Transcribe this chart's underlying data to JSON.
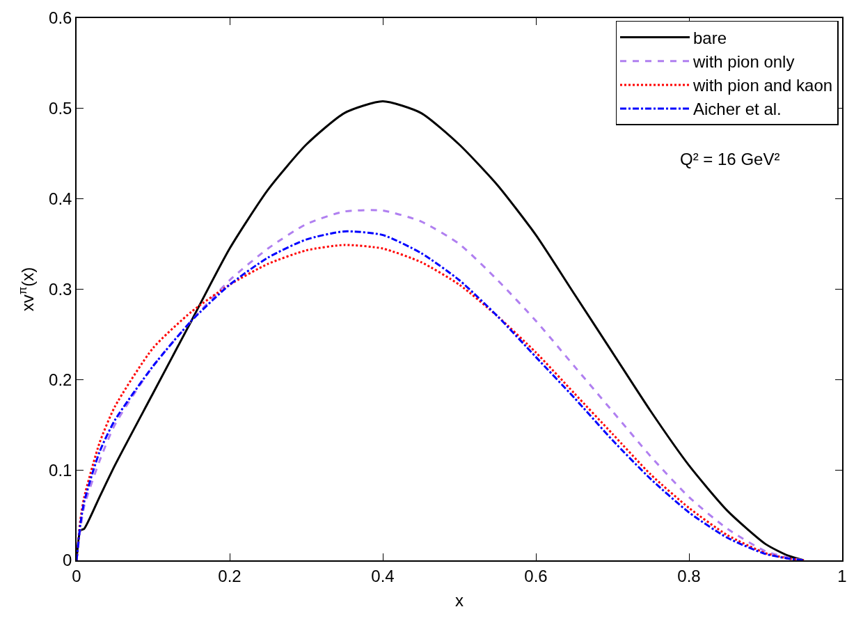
{
  "chart_data": {
    "type": "line",
    "xlabel": "x",
    "ylabel": "xv$^{π}$(x)",
    "xlim": [
      0,
      1
    ],
    "xticks": [
      0,
      0.2,
      0.4,
      0.6,
      0.8,
      1
    ],
    "ylim": [
      0,
      0.6
    ],
    "yticks": [
      0,
      0.1,
      0.2,
      0.3,
      0.4,
      0.5,
      0.6
    ],
    "legend": "top right",
    "marker": "none",
    "annotations": [
      "Q² = 16 GeV²"
    ],
    "x": [
      0,
      0.005,
      0.01,
      0.03,
      0.05,
      0.1,
      0.15,
      0.2,
      0.25,
      0.3,
      0.35,
      0.4,
      0.45,
      0.5,
      0.55,
      0.6,
      0.65,
      0.7,
      0.75,
      0.8,
      0.85,
      0.9,
      0.93,
      0.95
    ],
    "series": [
      {
        "name": "bare",
        "color": "#000000",
        "line_style": "solid",
        "values": [
          0,
          0.033,
          0.035,
          0.07,
          0.105,
          0.185,
          0.265,
          0.345,
          0.41,
          0.46,
          0.495,
          0.508,
          0.495,
          0.46,
          0.415,
          0.36,
          0.295,
          0.23,
          0.165,
          0.105,
          0.055,
          0.018,
          0.005,
          0.0
        ]
      },
      {
        "name": "with pion only",
        "color": "#b07ff0",
        "line_style": "dashed",
        "values": [
          0,
          0.035,
          0.06,
          0.11,
          0.15,
          0.215,
          0.265,
          0.31,
          0.345,
          0.372,
          0.386,
          0.387,
          0.375,
          0.35,
          0.31,
          0.265,
          0.215,
          0.165,
          0.115,
          0.07,
          0.035,
          0.01,
          0.003,
          0
        ]
      },
      {
        "name": "with pion and kaon",
        "color": "#ff0000",
        "line_style": "dotted",
        "values": [
          0,
          0.045,
          0.07,
          0.13,
          0.17,
          0.235,
          0.275,
          0.305,
          0.328,
          0.343,
          0.349,
          0.345,
          0.33,
          0.305,
          0.27,
          0.23,
          0.185,
          0.14,
          0.095,
          0.058,
          0.028,
          0.008,
          0.002,
          0
        ]
      },
      {
        "name": "Aicher et al.",
        "color": "#0000ff",
        "line_style": "dashdot",
        "values": [
          0,
          0.04,
          0.065,
          0.12,
          0.155,
          0.215,
          0.265,
          0.305,
          0.335,
          0.355,
          0.364,
          0.36,
          0.34,
          0.31,
          0.27,
          0.225,
          0.18,
          0.133,
          0.09,
          0.053,
          0.025,
          0.007,
          0.002,
          0
        ]
      }
    ]
  }
}
